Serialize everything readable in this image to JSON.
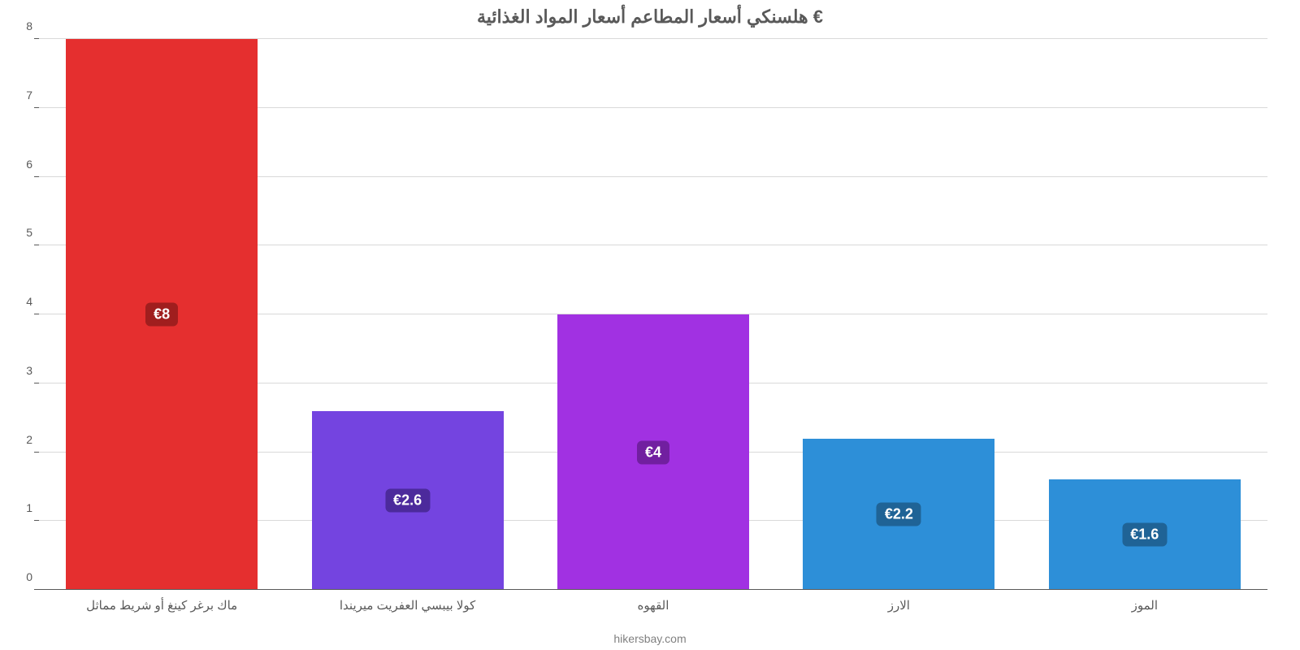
{
  "chart": {
    "type": "bar",
    "title": "هلسنكي أسعار المطاعم أسعار المواد الغذائية €",
    "title_fontsize": 22,
    "title_weight": "700",
    "title_color": "#595959",
    "subtitle": "hikersbay.com",
    "subtitle_fontsize": 14,
    "subtitle_color": "#808080",
    "background_color": "#ffffff",
    "ylim": [
      0,
      8
    ],
    "ytick_step": 1,
    "ytick_fontsize": 14,
    "ytick_color": "#595959",
    "grid_color": "#d9d9d9",
    "axis_color": "#595959",
    "xlabel_fontsize": 15,
    "xlabel_color": "#595959",
    "value_label_fontsize": 18,
    "value_label_text_color": "#ffffff",
    "value_label_radius": 6,
    "bar_width_ratio": 0.78,
    "gap_ratio": 0.05,
    "categories": [
      "ماك برغر كينغ أو شريط مماثل",
      "كولا بيبسي العفريت ميريندا",
      "القهوه",
      "الارز",
      "الموز"
    ],
    "values": [
      8,
      2.6,
      4,
      2.2,
      1.6
    ],
    "value_labels": [
      "€8",
      "€2.6",
      "€4",
      "€2.2",
      "€1.6"
    ],
    "bar_colors": [
      "#e52f2f",
      "#7444e0",
      "#a131e2",
      "#2d8fd8",
      "#2d8fd8"
    ],
    "label_bg_colors": [
      "#a01e1e",
      "#4c2a9c",
      "#711fa0",
      "#1f6396",
      "#1f6396"
    ],
    "yticks": [
      "0",
      "1",
      "2",
      "3",
      "4",
      "5",
      "6",
      "7",
      "8"
    ]
  }
}
